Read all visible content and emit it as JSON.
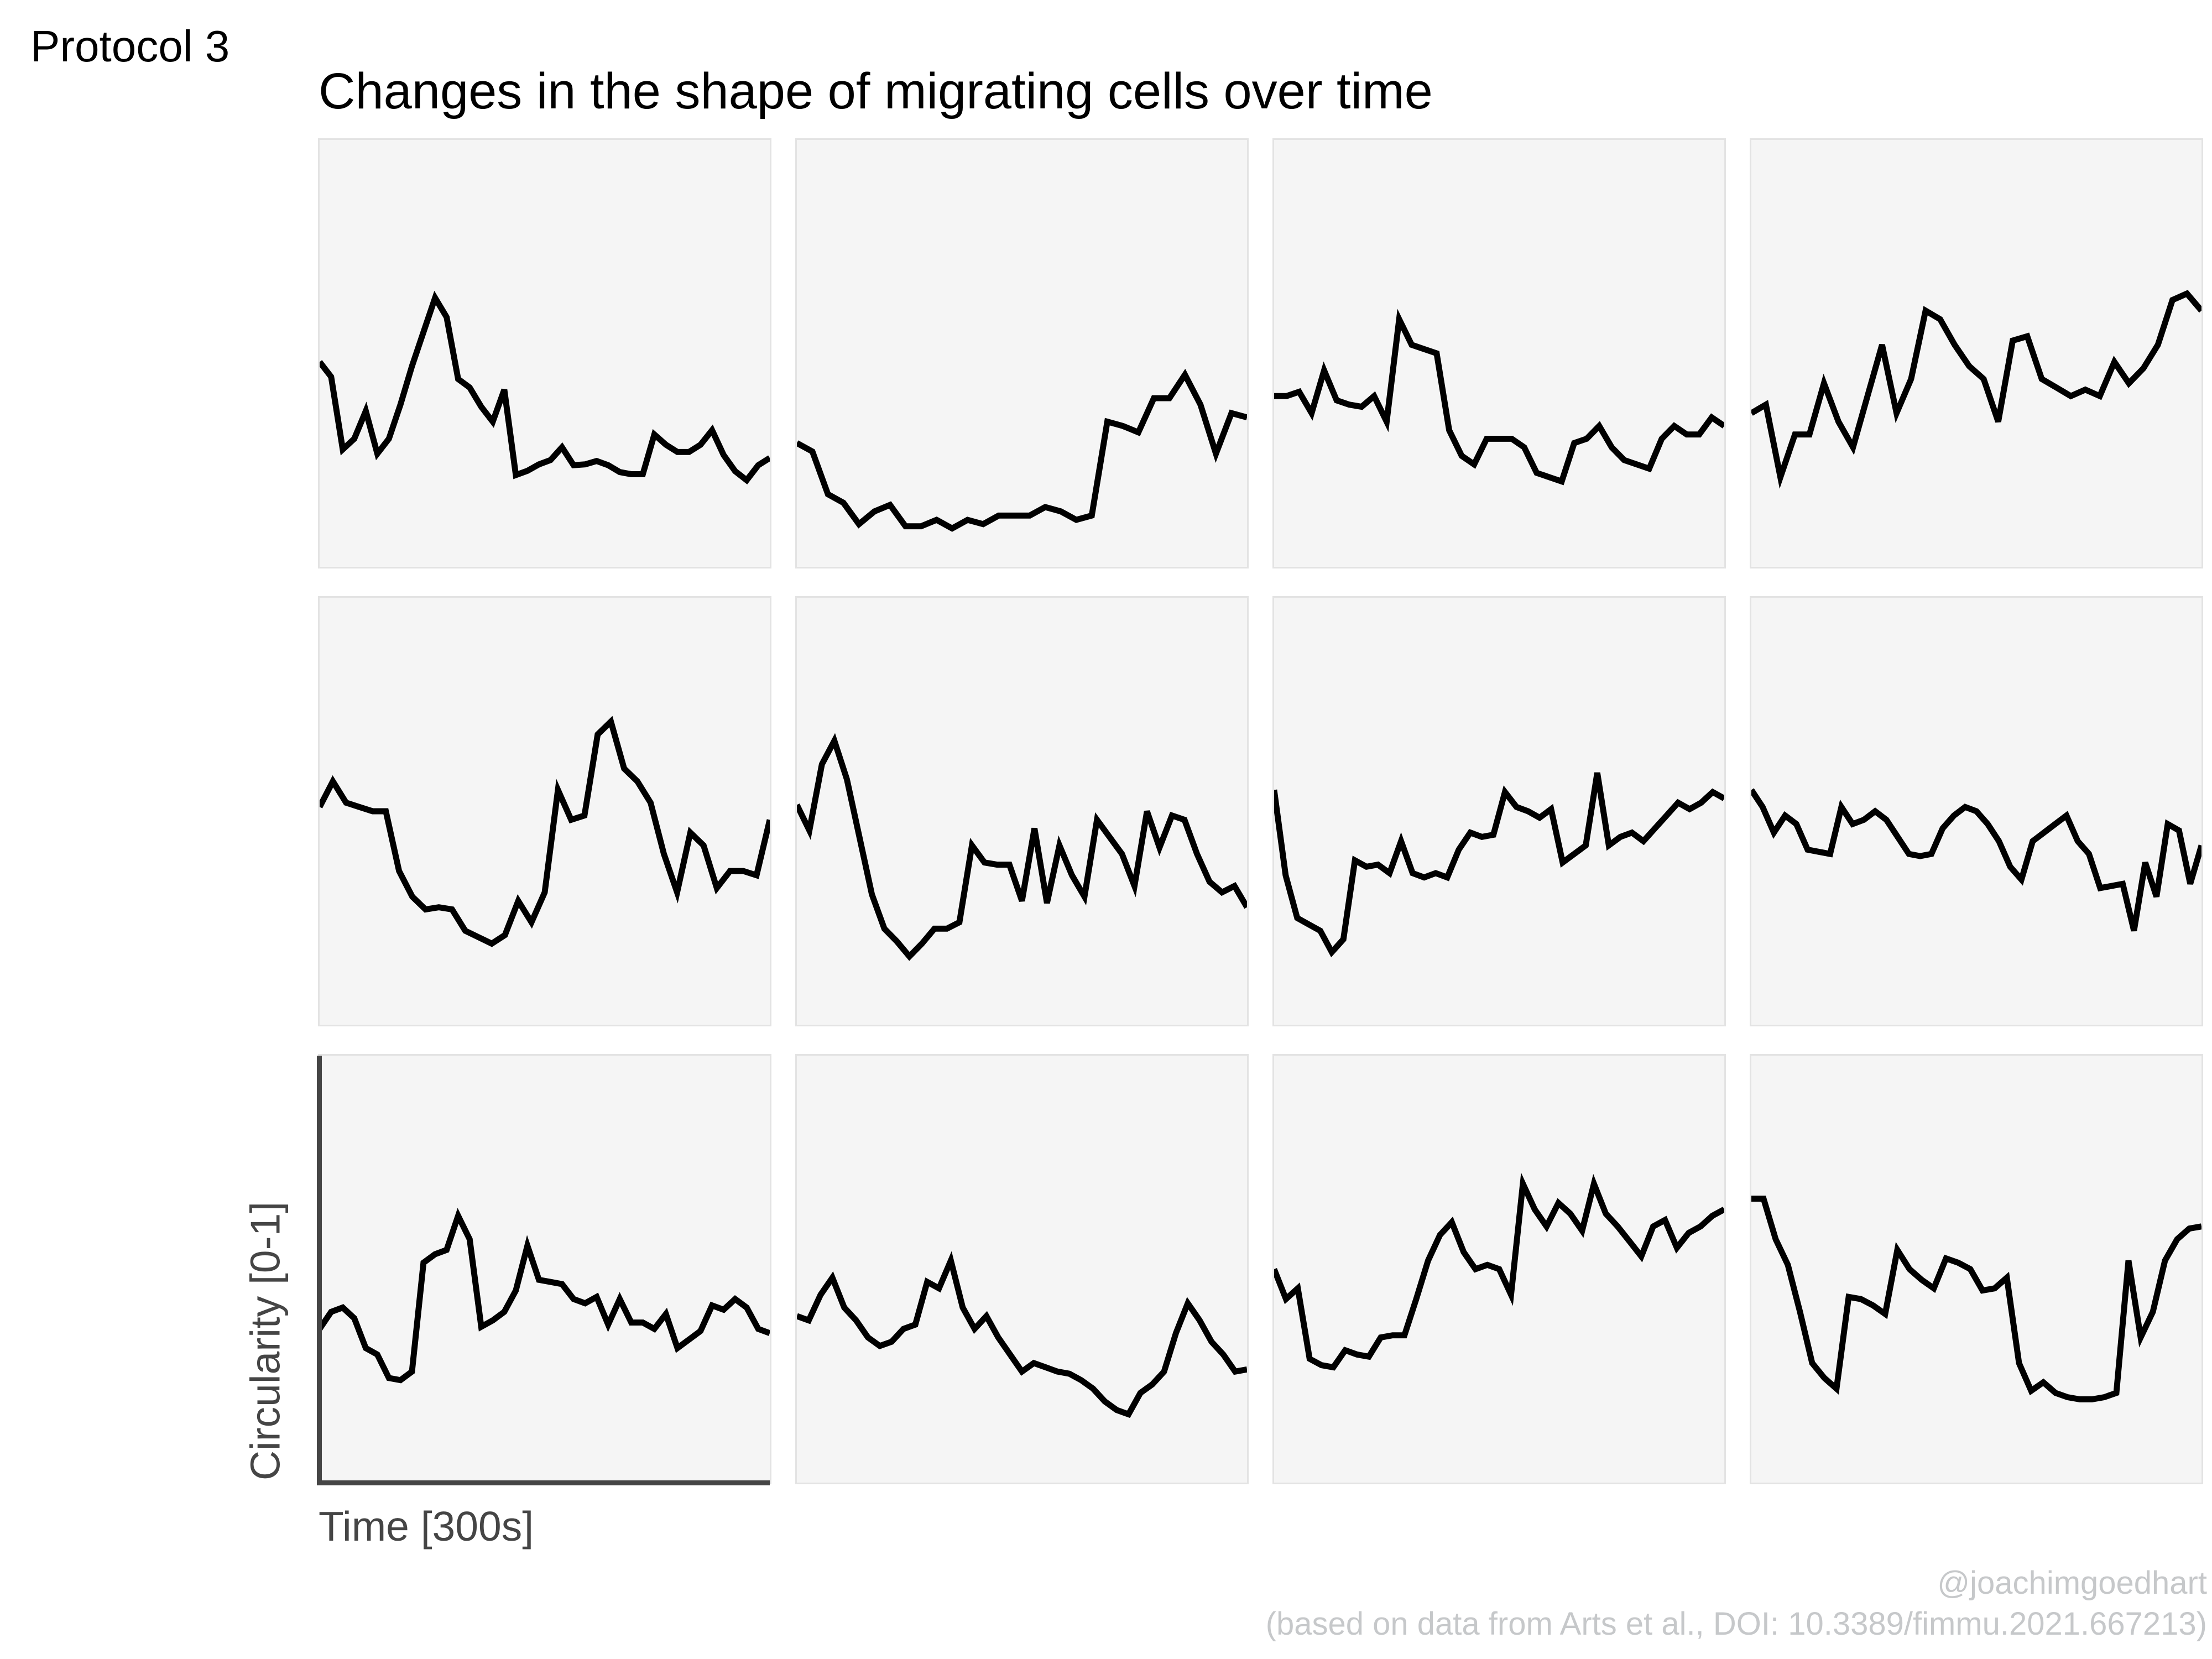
{
  "chart_data": {
    "type": "line",
    "facet_label": "Protocol 3",
    "title": "Changes in the shape of migrating cells over time",
    "xlabel": "Time [300s]",
    "ylabel": "Circularity [0-1]",
    "ylim": [
      0,
      1
    ],
    "grid": {
      "rows": 3,
      "cols": 4
    },
    "legend": "none",
    "gridlines": false,
    "line_color": "#000000",
    "panel_bg": "#f5f5f5",
    "panel_border": "#e3e3e3",
    "axis_color": "#454545",
    "axis_panel": {
      "row": 3,
      "col": 1
    },
    "panels": [
      {
        "row": 1,
        "col": 1,
        "values": [
          0.48,
          0.445,
          0.275,
          0.3,
          0.365,
          0.265,
          0.3,
          0.38,
          0.47,
          0.55,
          0.63,
          0.585,
          0.44,
          0.42,
          0.375,
          0.34,
          0.415,
          0.215,
          0.225,
          0.24,
          0.25,
          0.28,
          0.238,
          0.24,
          0.248,
          0.238,
          0.222,
          0.217,
          0.217,
          0.31,
          0.286,
          0.269,
          0.269,
          0.286,
          0.32,
          0.262,
          0.224,
          0.203,
          0.238,
          0.255
        ]
      },
      {
        "row": 1,
        "col": 2,
        "values": [
          0.29,
          0.27,
          0.17,
          0.15,
          0.1,
          0.13,
          0.145,
          0.095,
          0.095,
          0.11,
          0.09,
          0.11,
          0.1,
          0.12,
          0.12,
          0.12,
          0.14,
          0.13,
          0.11,
          0.12,
          0.34,
          0.33,
          0.315,
          0.395,
          0.395,
          0.45,
          0.38,
          0.265,
          0.36,
          0.35
        ]
      },
      {
        "row": 1,
        "col": 3,
        "values": [
          0.4,
          0.4,
          0.41,
          0.36,
          0.46,
          0.39,
          0.38,
          0.375,
          0.4,
          0.34,
          0.58,
          0.52,
          0.51,
          0.5,
          0.32,
          0.26,
          0.24,
          0.3,
          0.3,
          0.3,
          0.28,
          0.22,
          0.21,
          0.2,
          0.29,
          0.3,
          0.33,
          0.28,
          0.25,
          0.24,
          0.23,
          0.3,
          0.33,
          0.31,
          0.31,
          0.35,
          0.33
        ]
      },
      {
        "row": 1,
        "col": 4,
        "values": [
          0.36,
          0.38,
          0.21,
          0.31,
          0.31,
          0.43,
          0.34,
          0.28,
          0.4,
          0.52,
          0.36,
          0.44,
          0.6,
          0.58,
          0.52,
          0.47,
          0.44,
          0.34,
          0.53,
          0.54,
          0.44,
          0.42,
          0.4,
          0.415,
          0.4,
          0.48,
          0.43,
          0.465,
          0.52,
          0.625,
          0.64,
          0.6
        ]
      },
      {
        "row": 2,
        "col": 1,
        "values": [
          0.51,
          0.57,
          0.52,
          0.51,
          0.5,
          0.5,
          0.36,
          0.3,
          0.27,
          0.275,
          0.27,
          0.22,
          0.205,
          0.19,
          0.21,
          0.29,
          0.24,
          0.31,
          0.55,
          0.48,
          0.49,
          0.68,
          0.71,
          0.6,
          0.57,
          0.52,
          0.4,
          0.31,
          0.45,
          0.42,
          0.32,
          0.36,
          0.36,
          0.35,
          0.48
        ]
      },
      {
        "row": 2,
        "col": 2,
        "values": [
          0.515,
          0.455,
          0.61,
          0.665,
          0.575,
          0.44,
          0.305,
          0.225,
          0.195,
          0.16,
          0.19,
          0.225,
          0.225,
          0.24,
          0.42,
          0.38,
          0.375,
          0.375,
          0.29,
          0.46,
          0.285,
          0.42,
          0.35,
          0.3,
          0.48,
          0.44,
          0.4,
          0.325,
          0.5,
          0.415,
          0.49,
          0.48,
          0.4,
          0.335,
          0.31,
          0.325,
          0.275
        ]
      },
      {
        "row": 2,
        "col": 3,
        "values": [
          0.55,
          0.35,
          0.25,
          0.235,
          0.22,
          0.17,
          0.2,
          0.385,
          0.37,
          0.375,
          0.355,
          0.43,
          0.355,
          0.345,
          0.355,
          0.345,
          0.41,
          0.45,
          0.44,
          0.445,
          0.545,
          0.51,
          0.5,
          0.485,
          0.505,
          0.38,
          0.4,
          0.42,
          0.59,
          0.42,
          0.44,
          0.45,
          0.43,
          0.46,
          0.49,
          0.52,
          0.505,
          0.52,
          0.545,
          0.53
        ]
      },
      {
        "row": 2,
        "col": 4,
        "values": [
          0.55,
          0.51,
          0.45,
          0.49,
          0.47,
          0.41,
          0.405,
          0.4,
          0.51,
          0.47,
          0.48,
          0.5,
          0.48,
          0.44,
          0.4,
          0.395,
          0.4,
          0.46,
          0.49,
          0.51,
          0.5,
          0.47,
          0.43,
          0.37,
          0.34,
          0.43,
          0.45,
          0.47,
          0.49,
          0.43,
          0.4,
          0.32,
          0.325,
          0.33,
          0.22,
          0.38,
          0.3,
          0.47,
          0.455,
          0.33,
          0.42
        ]
      },
      {
        "row": 3,
        "col": 1,
        "values": [
          0.36,
          0.4,
          0.41,
          0.385,
          0.315,
          0.3,
          0.245,
          0.24,
          0.26,
          0.515,
          0.535,
          0.545,
          0.625,
          0.57,
          0.365,
          0.38,
          0.4,
          0.45,
          0.555,
          0.475,
          0.47,
          0.465,
          0.43,
          0.42,
          0.435,
          0.37,
          0.43,
          0.375,
          0.375,
          0.36,
          0.395,
          0.315,
          0.335,
          0.355,
          0.415,
          0.405,
          0.43,
          0.41,
          0.36,
          0.35
        ]
      },
      {
        "row": 3,
        "col": 2,
        "values": [
          0.39,
          0.38,
          0.44,
          0.48,
          0.41,
          0.38,
          0.34,
          0.32,
          0.33,
          0.36,
          0.37,
          0.47,
          0.455,
          0.52,
          0.41,
          0.36,
          0.39,
          0.34,
          0.3,
          0.26,
          0.28,
          0.27,
          0.26,
          0.255,
          0.24,
          0.22,
          0.19,
          0.17,
          0.16,
          0.21,
          0.23,
          0.26,
          0.35,
          0.42,
          0.38,
          0.33,
          0.3,
          0.26,
          0.265
        ]
      },
      {
        "row": 3,
        "col": 3,
        "values": [
          0.5,
          0.43,
          0.455,
          0.29,
          0.275,
          0.27,
          0.31,
          0.3,
          0.295,
          0.34,
          0.345,
          0.345,
          0.43,
          0.52,
          0.58,
          0.61,
          0.54,
          0.5,
          0.51,
          0.5,
          0.44,
          0.7,
          0.64,
          0.6,
          0.655,
          0.63,
          0.59,
          0.7,
          0.63,
          0.6,
          0.565,
          0.53,
          0.6,
          0.615,
          0.55,
          0.585,
          0.6,
          0.625,
          0.64
        ]
      },
      {
        "row": 3,
        "col": 4,
        "values": [
          0.665,
          0.665,
          0.57,
          0.51,
          0.4,
          0.28,
          0.245,
          0.22,
          0.435,
          0.43,
          0.415,
          0.395,
          0.545,
          0.5,
          0.475,
          0.455,
          0.525,
          0.515,
          0.5,
          0.45,
          0.455,
          0.48,
          0.28,
          0.215,
          0.235,
          0.21,
          0.2,
          0.195,
          0.195,
          0.2,
          0.21,
          0.52,
          0.34,
          0.4,
          0.52,
          0.57,
          0.595,
          0.6
        ]
      }
    ]
  },
  "attribution": {
    "line1": "@joachimgoedhart",
    "line2": "(based on data from Arts et al., DOI: 10.3389/fimmu.2021.667213)",
    "color": "#c6c8ca"
  }
}
